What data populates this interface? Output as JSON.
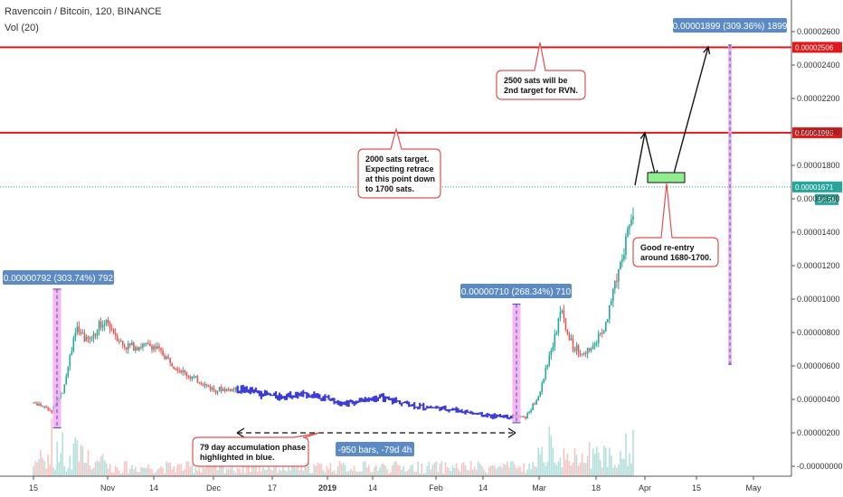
{
  "header": {
    "title": "Ravencoin / Bitcoin, 120, BINANCE",
    "volume_label": "Vol (20)"
  },
  "colors": {
    "resistance": "#e31919",
    "price_line": "#26a69a",
    "up_candle": "#26a69a",
    "down_candle": "#ef5350",
    "highlight": "#f3a6f0",
    "badge": "#5b8ac4",
    "callout_border": "#e05050",
    "accumulation": "#3b3bd6",
    "entry_box": "#90ee90"
  },
  "chart_data": {
    "type": "candlestick",
    "symbol": "Ravencoin / Bitcoin",
    "interval": "120",
    "exchange": "BINANCE",
    "y_axis_labels": [
      "0.00002600",
      "0.00002400",
      "0.00002200",
      "0.00002000",
      "0.00001800",
      "0.00001600",
      "0.00001400",
      "0.00001200",
      "0.00001000",
      "0.00000800",
      "0.00000600",
      "0.00000400",
      "0.00000200",
      "-0.00000000"
    ],
    "y_axis_values": [
      2.6e-05,
      2.4e-05,
      2.2e-05,
      2e-05,
      1.8e-05,
      1.6e-05,
      1.4e-05,
      1.2e-05,
      1e-05,
      8e-06,
      6e-06,
      4e-06,
      2e-06,
      0
    ],
    "x_axis_labels": [
      {
        "label": "15",
        "bold": false
      },
      {
        "label": "Nov",
        "bold": false
      },
      {
        "label": "14",
        "bold": false
      },
      {
        "label": "Dec",
        "bold": false
      },
      {
        "label": "17",
        "bold": false
      },
      {
        "label": "2019",
        "bold": true
      },
      {
        "label": "14",
        "bold": false
      },
      {
        "label": "Feb",
        "bold": false
      },
      {
        "label": "14",
        "bold": false
      },
      {
        "label": "Mar",
        "bold": false
      },
      {
        "label": "18",
        "bold": false
      },
      {
        "label": "Apr",
        "bold": false
      },
      {
        "label": "15",
        "bold": false
      },
      {
        "label": "May",
        "bold": false
      }
    ],
    "resistance_levels": [
      {
        "value": 2.506e-05,
        "label": "0.00002506"
      },
      {
        "value": 1.995e-05,
        "label": "0.00001995"
      }
    ],
    "last_price": {
      "value": 1.671e-05,
      "label": "0.00001671",
      "countdown": "54:58"
    },
    "series_keypoints": [
      {
        "t": 0,
        "v": 3.8e-06
      },
      {
        "t": 0.03,
        "v": 3.3e-06
      },
      {
        "t": 0.05,
        "v": 4.6e-06
      },
      {
        "t": 0.07,
        "v": 8.2e-06
      },
      {
        "t": 0.09,
        "v": 7.5e-06
      },
      {
        "t": 0.12,
        "v": 8.8e-06
      },
      {
        "t": 0.15,
        "v": 7.2e-06
      },
      {
        "t": 0.2,
        "v": 7.2e-06
      },
      {
        "t": 0.25,
        "v": 5.6e-06
      },
      {
        "t": 0.3,
        "v": 4.6e-06
      },
      {
        "t": 0.35,
        "v": 4.6e-06
      },
      {
        "t": 0.4,
        "v": 4.2e-06
      },
      {
        "t": 0.46,
        "v": 4.3e-06
      },
      {
        "t": 0.52,
        "v": 3.8e-06
      },
      {
        "t": 0.58,
        "v": 4.1e-06
      },
      {
        "t": 0.64,
        "v": 3.6e-06
      },
      {
        "t": 0.7,
        "v": 3.4e-06
      },
      {
        "t": 0.76,
        "v": 3e-06
      },
      {
        "t": 0.8,
        "v": 3e-06
      },
      {
        "t": 0.82,
        "v": 2.9e-06
      },
      {
        "t": 0.84,
        "v": 4e-06
      },
      {
        "t": 0.87,
        "v": 7.8e-06
      },
      {
        "t": 0.88,
        "v": 9.3e-06
      },
      {
        "t": 0.9,
        "v": 7.1e-06
      },
      {
        "t": 0.92,
        "v": 6.8e-06
      },
      {
        "t": 0.95,
        "v": 8e-06
      },
      {
        "t": 0.98,
        "v": 1.25e-05
      },
      {
        "t": 1.0,
        "v": 1.52e-05
      },
      {
        "t": 1.02,
        "v": 1.35e-05
      },
      {
        "t": 1.04,
        "v": 1.67e-05
      }
    ],
    "measure_badges": [
      {
        "text": "0.00000792 (303.74%) 792"
      },
      {
        "text": "0.00000710 (268.34%) 710"
      },
      {
        "text": "0.00001899 (309.36%) 1899"
      },
      {
        "text": "-950 bars, -79d 4h"
      }
    ]
  },
  "annotations": {
    "target_2500": [
      "2500 sats will be",
      "2nd target for RVN."
    ],
    "target_2000": [
      "2000 sats target.",
      "Expecting retrace",
      "at this point down",
      "to 1700 sats."
    ],
    "reentry": [
      "Good re-entry",
      "around 1680-1700."
    ],
    "accumulation": [
      "79 day accumulation phase",
      "highlighted in blue."
    ]
  }
}
